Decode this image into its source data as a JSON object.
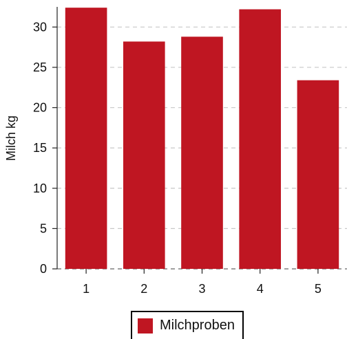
{
  "chart_data": {
    "type": "bar",
    "categories": [
      "1",
      "2",
      "3",
      "4",
      "5"
    ],
    "series": [
      {
        "name": "Milchproben",
        "values": [
          32.4,
          28.2,
          28.8,
          32.2,
          23.4
        ]
      }
    ],
    "xlabel": "",
    "ylabel": "Milch kg",
    "ylim": [
      0,
      32.5
    ],
    "yticks": [
      0,
      5,
      10,
      15,
      20,
      25,
      30
    ],
    "grid": true,
    "legend_position": "bottom-center",
    "bar_color": "#bf1622"
  },
  "legend": {
    "label": "Milchproben",
    "color": "#bf1622"
  }
}
